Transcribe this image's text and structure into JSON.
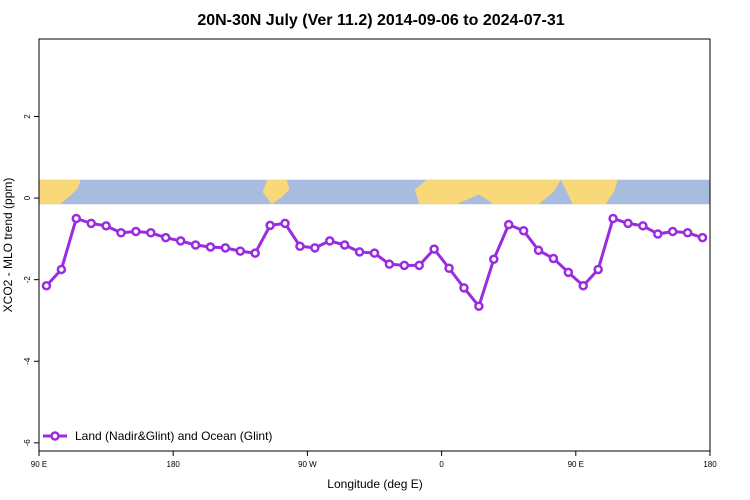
{
  "chart_data": {
    "type": "line",
    "title": "20N-30N July (Ver 11.2)   2014-09-06 to 2024-07-31",
    "xlabel": "Longitude (deg E)",
    "ylabel": "XCO2 - MLO trend (ppm)",
    "xlim": [
      90,
      540
    ],
    "ylim": [
      -6.2,
      3.9
    ],
    "x_ticks": [
      {
        "value": 90,
        "label": "90 E"
      },
      {
        "value": 180,
        "label": "180"
      },
      {
        "value": 270,
        "label": "90 W"
      },
      {
        "value": 360,
        "label": "0"
      },
      {
        "value": 450,
        "label": "90 E"
      },
      {
        "value": 540,
        "label": "180"
      }
    ],
    "y_ticks": [
      {
        "value": -6,
        "label": "-6"
      },
      {
        "value": -4,
        "label": "-4"
      },
      {
        "value": -2,
        "label": "-2"
      },
      {
        "value": 0,
        "label": "0"
      },
      {
        "value": 2,
        "label": "2"
      }
    ],
    "map_band": {
      "ymin": -0.15,
      "ymax": 0.45,
      "ocean_color": "#a7bcde",
      "land_color": "#f8d878"
    },
    "grid": false,
    "legend_position": "bottom-left",
    "series": [
      {
        "name": "Land (Nadir&Glint) and Ocean (Glint)",
        "color": "#9a2be0",
        "x": [
          95,
          105,
          115,
          125,
          135,
          145,
          155,
          165,
          175,
          185,
          195,
          205,
          215,
          225,
          235,
          245,
          255,
          265,
          275,
          285,
          295,
          305,
          315,
          325,
          335,
          345,
          355,
          365,
          375,
          385,
          395,
          405,
          415,
          425,
          435,
          445,
          455,
          465,
          475,
          485,
          495,
          505,
          515,
          525,
          535
        ],
        "y": [
          -2.15,
          -1.75,
          -0.5,
          -0.62,
          -0.68,
          -0.85,
          -0.82,
          -0.85,
          -0.97,
          -1.05,
          -1.15,
          -1.2,
          -1.22,
          -1.3,
          -1.35,
          -0.67,
          -0.62,
          -1.18,
          -1.22,
          -1.05,
          -1.15,
          -1.32,
          -1.35,
          -1.62,
          -1.65,
          -1.65,
          -1.25,
          -1.72,
          -2.2,
          -2.65,
          -1.5,
          -0.65,
          -0.8,
          -1.28,
          -1.48,
          -1.82,
          -2.15,
          -1.75,
          -0.5,
          -0.62,
          -0.68,
          -0.88,
          -0.82,
          -0.85,
          -0.97
        ]
      }
    ]
  }
}
